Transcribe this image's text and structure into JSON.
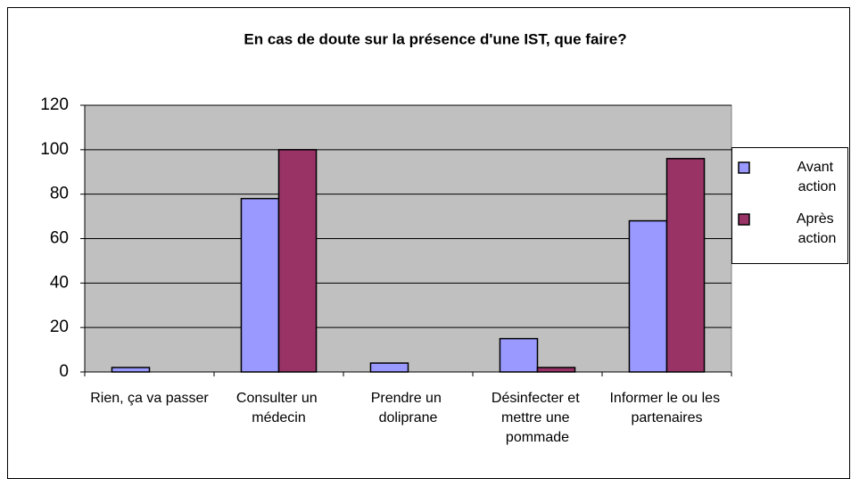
{
  "chart_data": {
    "type": "bar",
    "title": "En cas de doute sur la présence d'une IST, que faire?",
    "categories": [
      "Rien, ça va passer",
      "Consulter un médecin",
      "Prendre un doliprane",
      "Désinfecter et mettre une pommade",
      "Informer le ou les partenaires"
    ],
    "series": [
      {
        "name": "Avant action",
        "color": "#9999ff",
        "values": [
          2,
          78,
          4,
          15,
          68
        ]
      },
      {
        "name": "Après action",
        "color": "#993366",
        "values": [
          0,
          100,
          0,
          2,
          96
        ]
      }
    ],
    "ylim": [
      0,
      120
    ],
    "yticks": [
      0,
      20,
      40,
      60,
      80,
      100,
      120
    ],
    "grid": true,
    "legend": "right"
  }
}
